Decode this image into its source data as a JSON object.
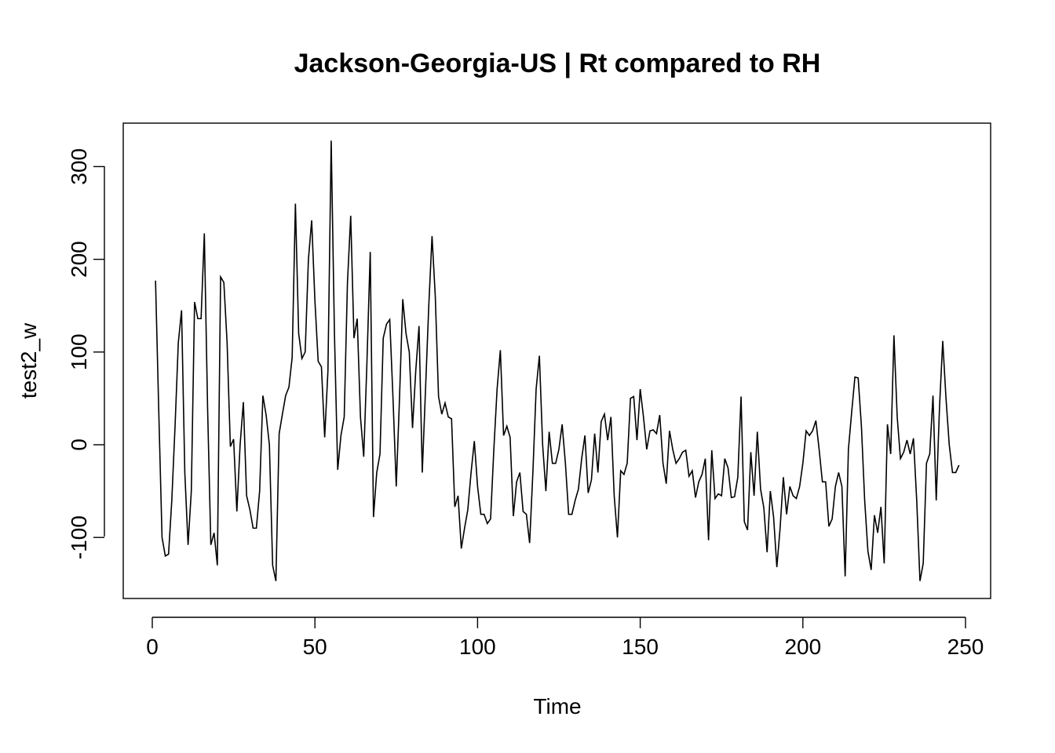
{
  "chart_data": {
    "type": "line",
    "title": "Jackson-Georgia-US | Rt compared to RH",
    "xlabel": "Time",
    "ylabel": "test2_w",
    "xlim": [
      0,
      250
    ],
    "ylim": [
      -150,
      330
    ],
    "x_ticks": [
      0,
      50,
      100,
      150,
      200,
      250
    ],
    "y_ticks": [
      -100,
      0,
      100,
      200,
      300
    ],
    "x_tick_labels": [
      "0",
      "50",
      "100",
      "150",
      "200",
      "250"
    ],
    "y_tick_labels": [
      "-100",
      "0",
      "100",
      "200",
      "300"
    ],
    "grid": false,
    "series": [
      {
        "x_start": 1,
        "x_step": 1,
        "color": "#000000",
        "values": [
          177,
          35,
          -100,
          -120,
          -118,
          -60,
          20,
          110,
          145,
          -30,
          -108,
          -50,
          154,
          136,
          136,
          228,
          40,
          -108,
          -95,
          -130,
          181,
          175,
          110,
          -2,
          6,
          -72,
          0,
          46,
          -55,
          -70,
          -90,
          -90,
          -50,
          53,
          32,
          0,
          -130,
          -147,
          12,
          33,
          53,
          62,
          94,
          260,
          120,
          93,
          100,
          200,
          242,
          155,
          90,
          84,
          8,
          80,
          328,
          120,
          -27,
          10,
          30,
          175,
          247,
          115,
          136,
          30,
          -13,
          90,
          208,
          -78,
          -30,
          -10,
          115,
          130,
          135,
          50,
          -45,
          50,
          157,
          120,
          100,
          18,
          80,
          128,
          -30,
          60,
          150,
          225,
          160,
          52,
          33,
          45,
          30,
          28,
          -67,
          -55,
          -112,
          -90,
          -70,
          -30,
          4,
          -45,
          -75,
          -75,
          -85,
          -80,
          -5,
          60,
          102,
          10,
          20,
          8,
          -77,
          -40,
          -30,
          -72,
          -75,
          -106,
          -30,
          60,
          96,
          0,
          -50,
          14,
          -20,
          -20,
          -5,
          22,
          -20,
          -75,
          -75,
          -60,
          -48,
          -15,
          10,
          -52,
          -38,
          12,
          -30,
          25,
          33,
          5,
          30,
          -55,
          -100,
          -28,
          -32,
          -20,
          50,
          52,
          5,
          60,
          30,
          -5,
          15,
          16,
          12,
          32,
          -20,
          -42,
          15,
          -5,
          -20,
          -15,
          -8,
          -6,
          -34,
          -28,
          -57,
          -40,
          -32,
          -15,
          -103,
          -6,
          -58,
          -53,
          -55,
          -15,
          -25,
          -57,
          -56,
          -35,
          52,
          -83,
          -92,
          -8,
          -55,
          14,
          -48,
          -68,
          -116,
          -50,
          -78,
          -132,
          -90,
          -35,
          -75,
          -45,
          -55,
          -58,
          -45,
          -20,
          15,
          10,
          15,
          26,
          -5,
          -40,
          -40,
          -88,
          -80,
          -45,
          -30,
          -45,
          -142,
          -5,
          35,
          73,
          72,
          20,
          -60,
          -115,
          -135,
          -76,
          -95,
          -67,
          -128,
          22,
          -10,
          118,
          30,
          -15,
          -8,
          5,
          -10,
          7,
          -60,
          -147,
          -128,
          -20,
          -10,
          53,
          -60,
          40,
          112,
          50,
          0,
          -30,
          -30,
          -22
        ]
      }
    ]
  }
}
